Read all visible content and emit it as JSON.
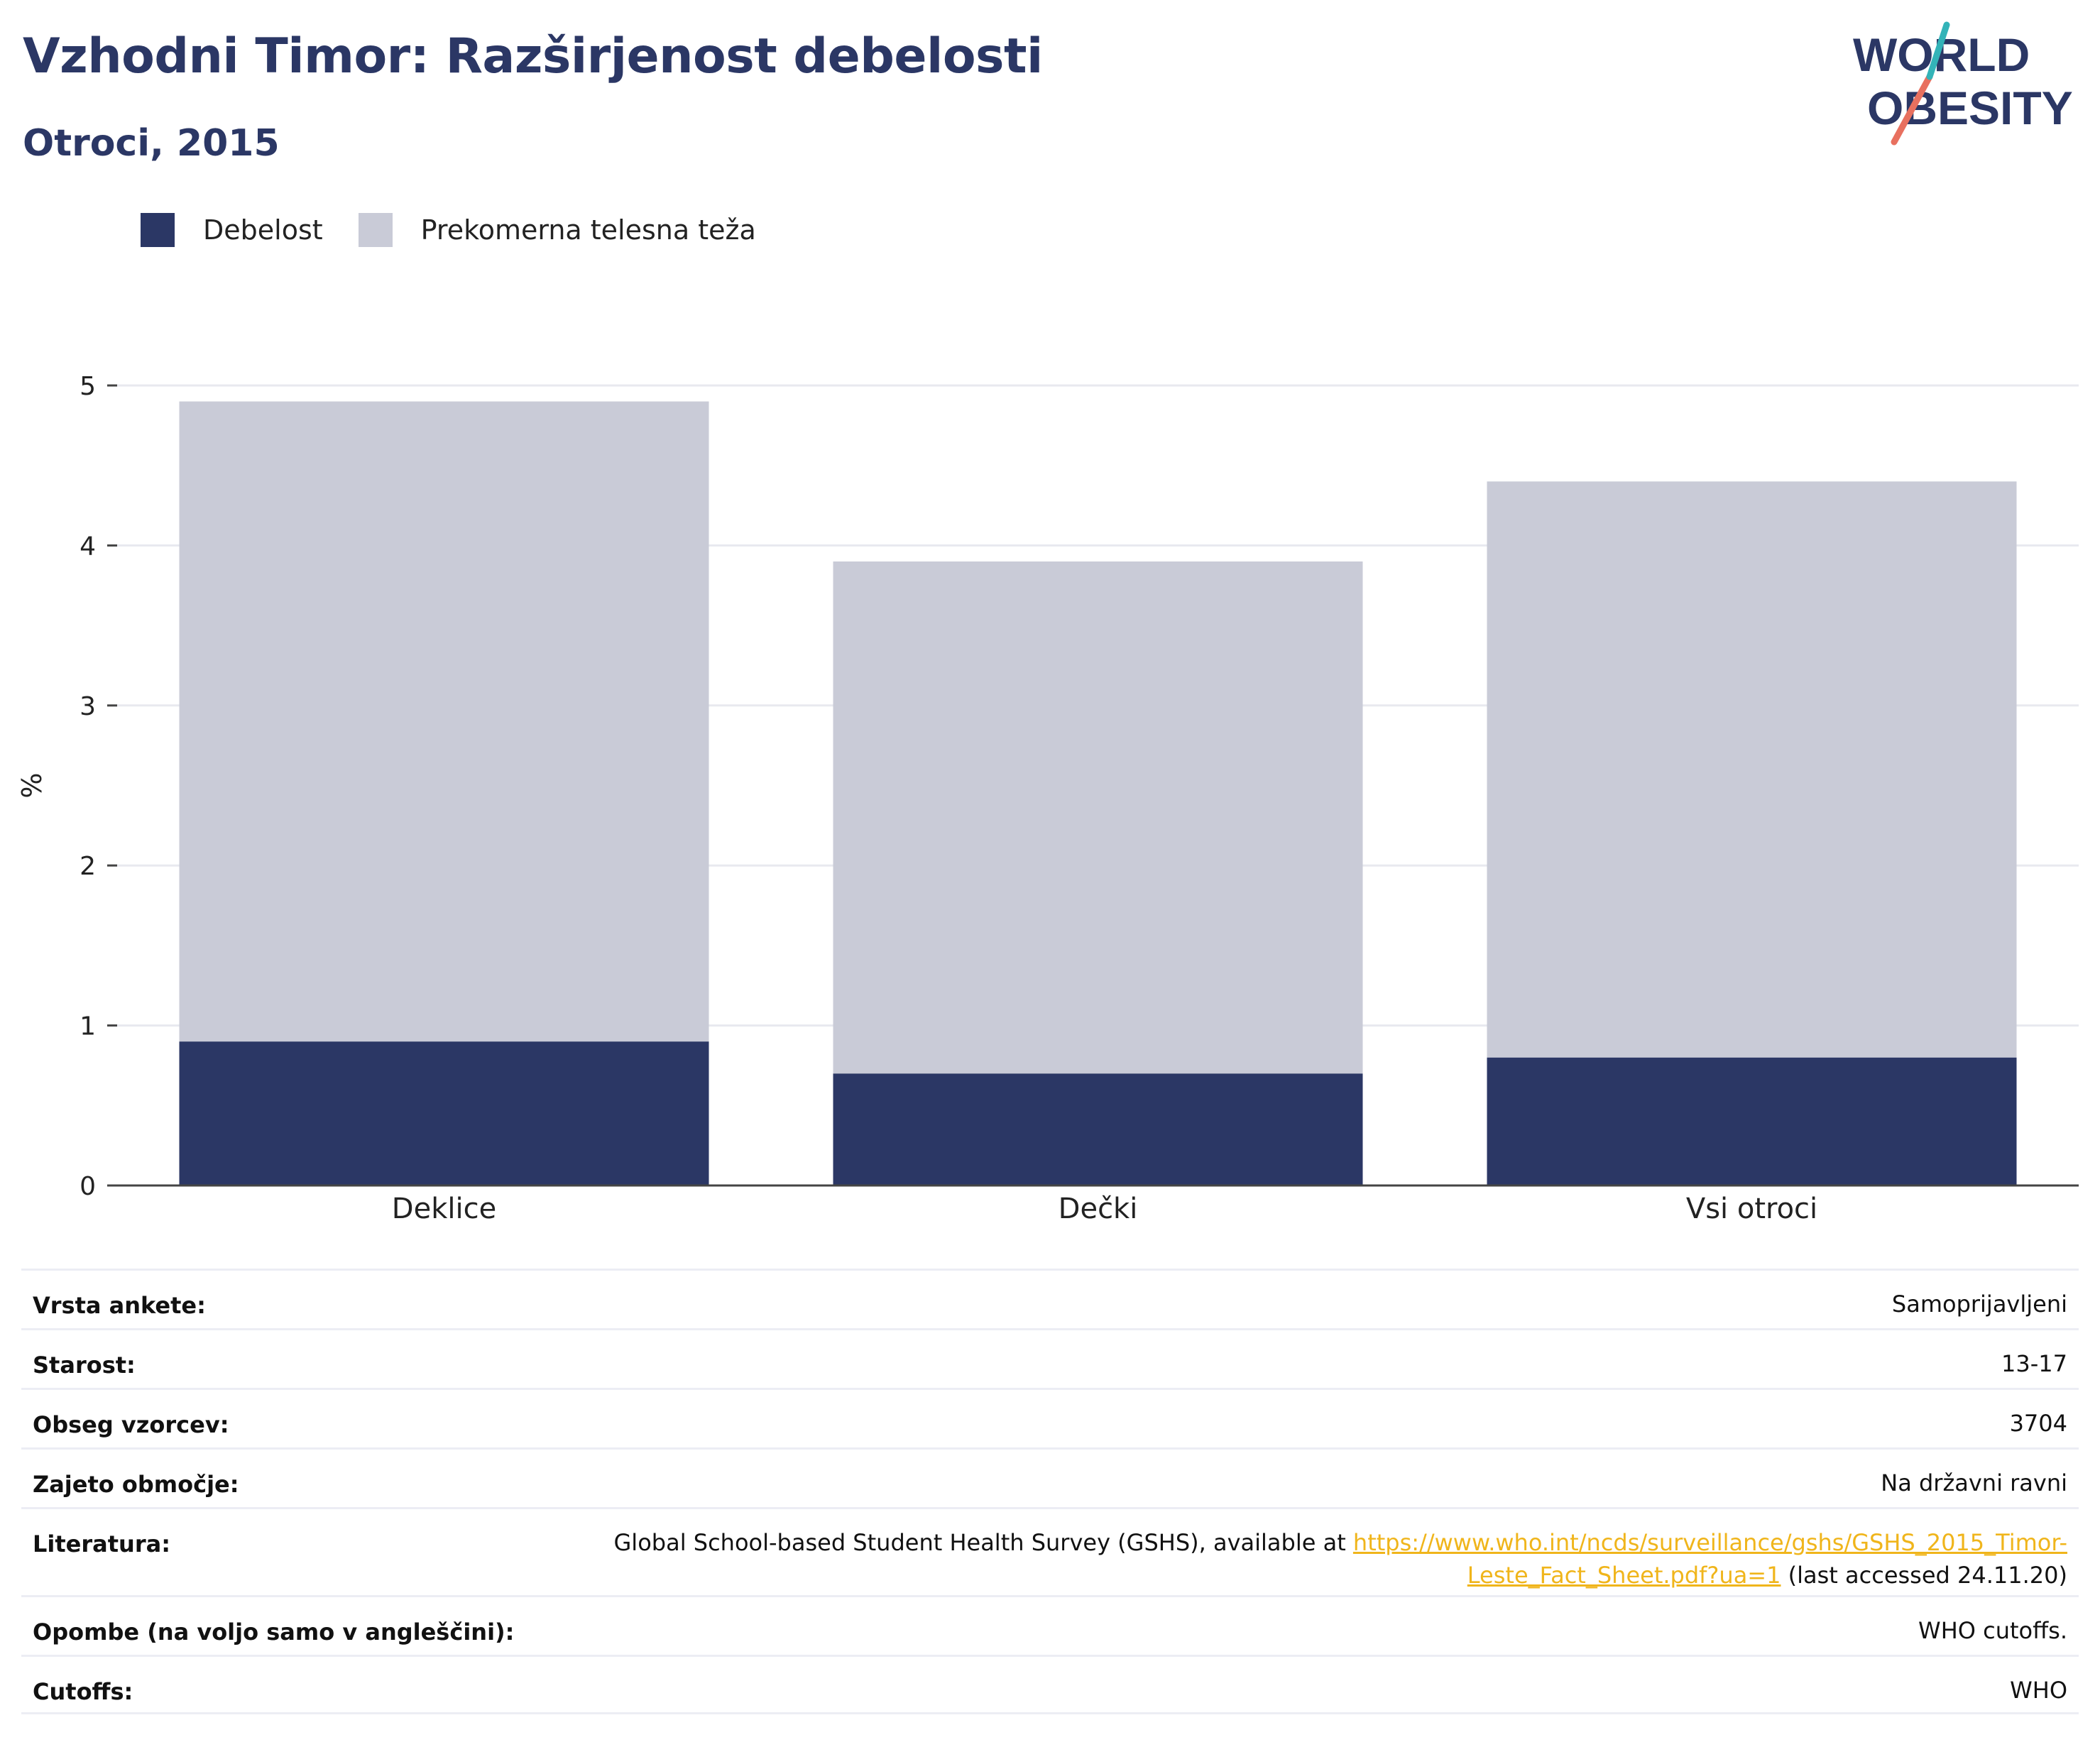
{
  "header": {
    "title": "Vzhodni Timor: Razširjenost debelosti",
    "subtitle": "Otroci, 2015"
  },
  "logo": {
    "line1": "WORLD",
    "line2": "OBESITY"
  },
  "colors": {
    "obesity": "#2b3765",
    "overweight": "#c9cbd7",
    "link": "#f0b51b",
    "title": "#2b3765"
  },
  "chart_data": {
    "type": "bar",
    "stacked": true,
    "categories": [
      "Deklice",
      "Dečki",
      "Vsi otroci"
    ],
    "series": [
      {
        "name": "Debelost",
        "values": [
          0.9,
          0.7,
          0.8
        ]
      },
      {
        "name": "Prekomerna telesna teža",
        "values": [
          4.0,
          3.2,
          3.6
        ]
      }
    ],
    "ylabel": "%",
    "ylim": [
      0,
      5
    ],
    "yticks": [
      0,
      1,
      2,
      3,
      4,
      5
    ],
    "grid": true,
    "legend_position": "top-left"
  },
  "metadata": [
    {
      "label": "Vrsta ankete:",
      "value": "Samoprijavljeni"
    },
    {
      "label": "Starost:",
      "value": "13-17"
    },
    {
      "label": "Obseg vzorcev:",
      "value": "3704"
    },
    {
      "label": "Zajeto območje:",
      "value": "Na državni ravni"
    },
    {
      "label": "Literatura:",
      "value_pre": "Global School-based Student Health Survey (GSHS), available at ",
      "link_line1": "https://www.who.int/ncds/surveillance/gshs/GSHS_2015_Timor-",
      "link_line2": "Leste_Fact_Sheet.pdf?ua=1",
      "value_post": " (last accessed 24.11.20)"
    },
    {
      "label": "Opombe (na voljo samo v angleščini):",
      "value": "WHO cutoffs."
    },
    {
      "label": "Cutoffs:",
      "value": "WHO"
    }
  ]
}
